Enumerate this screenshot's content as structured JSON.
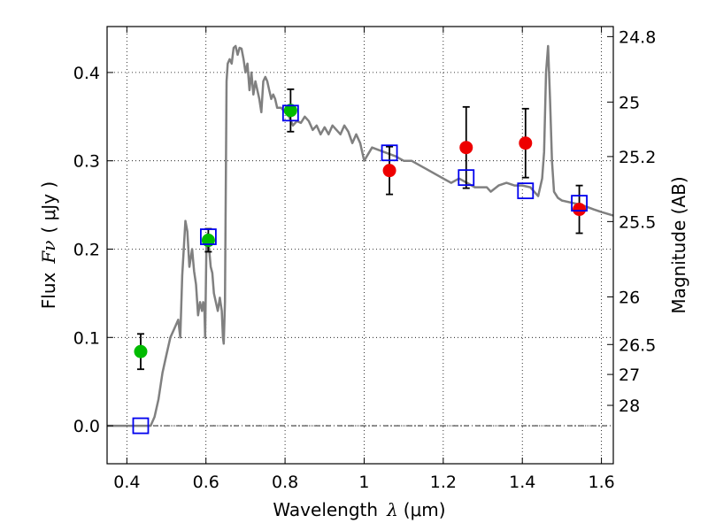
{
  "chart_data": {
    "type": "scatter",
    "title": "",
    "xlabel": "Wavelength",
    "xlabel_symbol": "λ",
    "xlabel_unit": "(μm)",
    "ylabel_prefix": "Flux",
    "ylabel_symbol": "Fν",
    "ylabel_unit": "( μJy )",
    "ylabel_right": "Magnitude (AB)",
    "xlim": [
      0.35,
      1.63
    ],
    "ylim": [
      -0.043,
      0.452
    ],
    "grid": true,
    "x_ticks": [
      0.4,
      0.6,
      0.8,
      1.0,
      1.2,
      1.4,
      1.6
    ],
    "x_tick_labels": [
      "0.4",
      "0.6",
      "0.8",
      "1",
      "1.2",
      "1.4",
      "1.6"
    ],
    "y_ticks": [
      0.0,
      0.1,
      0.2,
      0.3,
      0.4
    ],
    "y_tick_labels": [
      "0.0",
      "0.1",
      "0.2",
      "0.3",
      "0.4"
    ],
    "right_ticks": [
      {
        "label": "24.8",
        "flux": 0.4406
      },
      {
        "label": "25",
        "flux": 0.3665
      },
      {
        "label": "25.2",
        "flux": 0.3048
      },
      {
        "label": "25.5",
        "flux": 0.2312
      },
      {
        "label": "26",
        "flux": 0.1459
      },
      {
        "label": "26.5",
        "flux": 0.092
      },
      {
        "label": "27",
        "flux": 0.0581
      },
      {
        "label": "28",
        "flux": 0.0231
      }
    ],
    "colors": {
      "model": "#808080",
      "green": "#00bb00",
      "red": "#ee0000",
      "square": "#0000ee",
      "errorbar": "#000000"
    },
    "series": [
      {
        "name": "model_spectrum",
        "kind": "line",
        "x": [
          0.35,
          0.46,
          0.47,
          0.48,
          0.49,
          0.5,
          0.51,
          0.52,
          0.53,
          0.535,
          0.54,
          0.548,
          0.553,
          0.558,
          0.565,
          0.57,
          0.575,
          0.58,
          0.585,
          0.59,
          0.593,
          0.596,
          0.598,
          0.601,
          0.604,
          0.608,
          0.612,
          0.616,
          0.62,
          0.625,
          0.63,
          0.635,
          0.64,
          0.643,
          0.645,
          0.648,
          0.652,
          0.655,
          0.66,
          0.665,
          0.67,
          0.675,
          0.68,
          0.685,
          0.69,
          0.695,
          0.7,
          0.705,
          0.71,
          0.715,
          0.72,
          0.725,
          0.73,
          0.735,
          0.74,
          0.745,
          0.75,
          0.755,
          0.76,
          0.765,
          0.77,
          0.775,
          0.78,
          0.785,
          0.79,
          0.8,
          0.81,
          0.82,
          0.83,
          0.84,
          0.85,
          0.86,
          0.87,
          0.88,
          0.89,
          0.9,
          0.91,
          0.92,
          0.93,
          0.94,
          0.95,
          0.96,
          0.97,
          0.98,
          0.99,
          1.0,
          1.02,
          1.05,
          1.08,
          1.1,
          1.12,
          1.14,
          1.16,
          1.18,
          1.2,
          1.22,
          1.24,
          1.26,
          1.28,
          1.3,
          1.31,
          1.32,
          1.34,
          1.36,
          1.38,
          1.4,
          1.42,
          1.43,
          1.44,
          1.45,
          1.455,
          1.46,
          1.465,
          1.47,
          1.475,
          1.48,
          1.49,
          1.5,
          1.55,
          1.58,
          1.6,
          1.63
        ],
        "y": [
          0.0,
          0.0,
          0.01,
          0.03,
          0.06,
          0.08,
          0.1,
          0.11,
          0.12,
          0.1,
          0.17,
          0.232,
          0.22,
          0.18,
          0.2,
          0.175,
          0.16,
          0.125,
          0.14,
          0.13,
          0.14,
          0.135,
          0.1,
          0.2,
          0.217,
          0.2,
          0.18,
          0.173,
          0.15,
          0.14,
          0.13,
          0.145,
          0.13,
          0.1,
          0.093,
          0.14,
          0.39,
          0.41,
          0.415,
          0.41,
          0.428,
          0.43,
          0.42,
          0.428,
          0.427,
          0.415,
          0.4,
          0.41,
          0.38,
          0.4,
          0.375,
          0.39,
          0.38,
          0.37,
          0.355,
          0.39,
          0.395,
          0.39,
          0.38,
          0.37,
          0.375,
          0.37,
          0.36,
          0.36,
          0.36,
          0.355,
          0.35,
          0.34,
          0.345,
          0.343,
          0.35,
          0.345,
          0.335,
          0.34,
          0.33,
          0.338,
          0.33,
          0.34,
          0.335,
          0.33,
          0.34,
          0.333,
          0.32,
          0.33,
          0.32,
          0.3,
          0.315,
          0.31,
          0.305,
          0.3,
          0.3,
          0.295,
          0.29,
          0.285,
          0.28,
          0.275,
          0.28,
          0.275,
          0.27,
          0.27,
          0.27,
          0.265,
          0.272,
          0.275,
          0.272,
          0.272,
          0.27,
          0.265,
          0.26,
          0.28,
          0.31,
          0.4,
          0.43,
          0.37,
          0.3,
          0.265,
          0.258,
          0.255,
          0.25,
          0.245,
          0.242,
          0.238
        ]
      },
      {
        "name": "green_points",
        "kind": "circle",
        "color": "green",
        "points": [
          {
            "x": 0.435,
            "y": 0.084,
            "err": 0.02
          },
          {
            "x": 0.606,
            "y": 0.21,
            "err": 0.013
          },
          {
            "x": 0.814,
            "y": 0.357,
            "err": 0.024
          }
        ]
      },
      {
        "name": "red_points",
        "kind": "circle",
        "color": "red",
        "points": [
          {
            "x": 1.064,
            "y": 0.289,
            "err": 0.027
          },
          {
            "x": 1.258,
            "y": 0.315,
            "err": 0.046
          },
          {
            "x": 1.408,
            "y": 0.32,
            "err": 0.039
          },
          {
            "x": 1.544,
            "y": 0.245,
            "err": 0.027
          }
        ]
      },
      {
        "name": "model_band_squares",
        "kind": "square",
        "color": "square",
        "points": [
          {
            "x": 0.435,
            "y": 0.0
          },
          {
            "x": 0.606,
            "y": 0.214
          },
          {
            "x": 0.814,
            "y": 0.354
          },
          {
            "x": 1.064,
            "y": 0.309
          },
          {
            "x": 1.258,
            "y": 0.281
          },
          {
            "x": 1.408,
            "y": 0.266
          },
          {
            "x": 1.544,
            "y": 0.252
          }
        ]
      }
    ]
  }
}
